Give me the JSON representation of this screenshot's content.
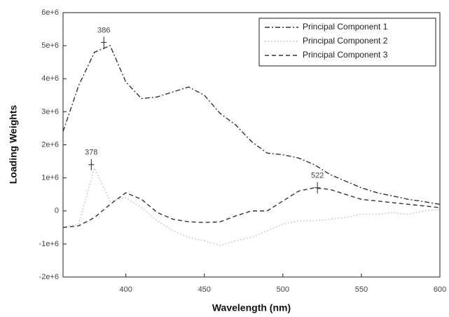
{
  "chart_data": {
    "type": "line",
    "x_label": "Wavelength (nm)",
    "y_label": "Loading Weights",
    "x": [
      360,
      370,
      380,
      390,
      400,
      410,
      420,
      430,
      440,
      450,
      460,
      470,
      480,
      490,
      500,
      510,
      520,
      530,
      540,
      550,
      560,
      570,
      580,
      590,
      600
    ],
    "series": [
      {
        "name": "Principal Component 1",
        "color": "#333333",
        "line_style": "dashdot",
        "values": [
          2400000,
          3800000,
          4800000,
          5000000,
          3900000,
          3400000,
          3450000,
          3600000,
          3750000,
          3500000,
          2950000,
          2600000,
          2100000,
          1750000,
          1700000,
          1600000,
          1400000,
          1100000,
          900000,
          700000,
          550000,
          450000,
          350000,
          280000,
          200000
        ]
      },
      {
        "name": "Principal Component 2",
        "color": "#bbbbbb",
        "line_style": "dotted",
        "values": [
          -500000,
          -400000,
          1300000,
          300000,
          400000,
          100000,
          -300000,
          -600000,
          -800000,
          -900000,
          -1050000,
          -900000,
          -800000,
          -600000,
          -400000,
          -300000,
          -300000,
          -250000,
          -200000,
          -100000,
          -100000,
          -50000,
          -100000,
          0,
          50000
        ]
      },
      {
        "name": "Principal Component 3",
        "color": "#333333",
        "line_style": "dashed",
        "values": [
          -500000,
          -450000,
          -200000,
          200000,
          550000,
          350000,
          -50000,
          -250000,
          -330000,
          -350000,
          -330000,
          -150000,
          0,
          0,
          300000,
          600000,
          700000,
          650000,
          500000,
          350000,
          300000,
          250000,
          200000,
          150000,
          100000
        ]
      }
    ],
    "annotations": [
      {
        "label": "386",
        "x": 386,
        "y": 5100000
      },
      {
        "label": "378",
        "x": 378,
        "y": 1400000
      },
      {
        "label": "522",
        "x": 522,
        "y": 700000
      }
    ],
    "xlim": [
      360,
      600
    ],
    "xticks": [
      400,
      450,
      500,
      550,
      600
    ],
    "ylim": [
      -2000000,
      6000000
    ],
    "yticks": [
      {
        "value": -2000000,
        "label": "-2e+6"
      },
      {
        "value": -1000000,
        "label": "-1e+6"
      },
      0,
      {
        "value": 1000000,
        "label": "1e+6"
      },
      {
        "value": 2000000,
        "label": "2e+6"
      },
      {
        "value": 3000000,
        "label": "3e+6"
      },
      {
        "value": 4000000,
        "label": "4e+6"
      },
      {
        "value": 5000000,
        "label": "5e+6"
      },
      {
        "value": 6000000,
        "label": "6e+6"
      }
    ],
    "legend": "upper right"
  }
}
